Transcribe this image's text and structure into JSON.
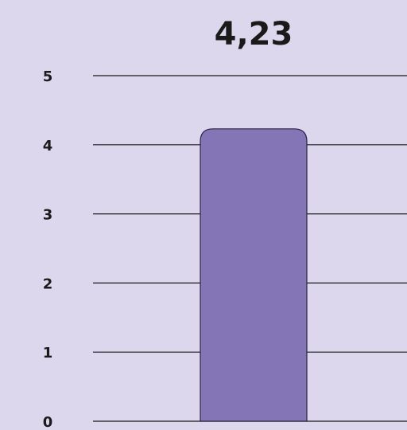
{
  "chart_data": {
    "type": "bar",
    "categories": [
      null
    ],
    "values": [
      4.23
    ],
    "value_labels": [
      "4,23"
    ],
    "color": "#8475b6",
    "ylim": [
      0,
      5
    ],
    "yticks": [
      0,
      1,
      2,
      3,
      4,
      5
    ],
    "grid": true
  }
}
